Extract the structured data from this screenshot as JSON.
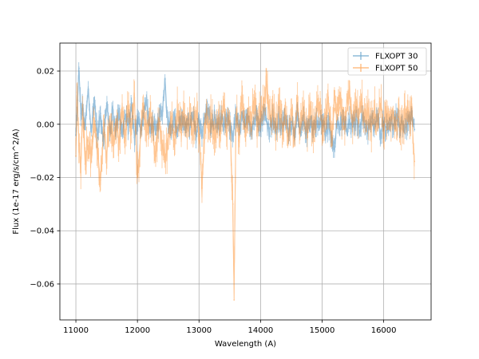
{
  "chart_data": {
    "type": "line",
    "title": "",
    "xlabel": "Wavelength (A)",
    "ylabel": "Flux (1e-17 erg/s/cm^2/A)",
    "xlim": [
      10740,
      16770
    ],
    "ylim": [
      -0.0735,
      0.0305
    ],
    "xticks": [
      11000,
      12000,
      13000,
      14000,
      15000,
      16000
    ],
    "xtick_labels": [
      "11000",
      "12000",
      "13000",
      "14000",
      "15000",
      "16000"
    ],
    "yticks": [
      0.02,
      0.0,
      -0.02,
      -0.04,
      -0.06
    ],
    "ytick_labels": [
      "0.02",
      "0.00",
      "−0.02",
      "−0.04",
      "−0.06"
    ],
    "grid": true,
    "legend_position": "upper right",
    "x_range": [
      11000,
      16500
    ],
    "series": [
      {
        "name": "FLXOPT 30",
        "color": "#1f77b4",
        "alpha": 0.45,
        "points": [
          [
            11000,
            -0.004
          ],
          [
            11030,
            0.009
          ],
          [
            11050,
            0.021
          ],
          [
            11080,
            0.004
          ],
          [
            11110,
            0.006
          ],
          [
            11150,
            -0.002
          ],
          [
            11200,
            0.013
          ],
          [
            11250,
            -0.003
          ],
          [
            11300,
            0.01
          ],
          [
            11350,
            -0.005
          ],
          [
            11400,
            0.004
          ],
          [
            11450,
            -0.006
          ],
          [
            11500,
            0.008
          ],
          [
            11550,
            -0.003
          ],
          [
            11600,
            0.005
          ],
          [
            11650,
            -0.002
          ],
          [
            11700,
            0.006
          ],
          [
            11750,
            -0.004
          ],
          [
            11800,
            0.003
          ],
          [
            11850,
            -0.001
          ],
          [
            11900,
            0.007
          ],
          [
            11950,
            -0.005
          ],
          [
            12000,
            0.002
          ],
          [
            12050,
            -0.002
          ],
          [
            12100,
            0.004
          ],
          [
            12150,
            0.009
          ],
          [
            12200,
            -0.003
          ],
          [
            12250,
            0.001
          ],
          [
            12300,
            -0.004
          ],
          [
            12350,
            0.002
          ],
          [
            12400,
            0.004
          ],
          [
            12450,
            0.017
          ],
          [
            12480,
            0.003
          ],
          [
            12550,
            -0.001
          ],
          [
            12600,
            0.002
          ],
          [
            12650,
            -0.003
          ],
          [
            12700,
            0.003
          ],
          [
            12750,
            -0.002
          ],
          [
            12800,
            0.002
          ],
          [
            12850,
            -0.002
          ],
          [
            12900,
            0.003
          ],
          [
            12950,
            -0.004
          ],
          [
            13000,
            0.002
          ],
          [
            13050,
            -0.003
          ],
          [
            13100,
            0.003
          ],
          [
            13150,
            0.006
          ],
          [
            13200,
            -0.002
          ],
          [
            13250,
            0.003
          ],
          [
            13300,
            -0.001
          ],
          [
            13350,
            0.002
          ],
          [
            13400,
            -0.002
          ],
          [
            13450,
            0.002
          ],
          [
            13500,
            -0.001
          ],
          [
            13550,
            -0.004
          ],
          [
            13600,
            0.003
          ],
          [
            13650,
            -0.002
          ],
          [
            13700,
            0.002
          ],
          [
            13750,
            -0.001
          ],
          [
            13800,
            0.003
          ],
          [
            13850,
            -0.002
          ],
          [
            13900,
            0.002
          ],
          [
            13950,
            0.004
          ],
          [
            14000,
            -0.001
          ],
          [
            14050,
            0.005
          ],
          [
            14100,
            0.001
          ],
          [
            14150,
            -0.002
          ],
          [
            14200,
            0.003
          ],
          [
            14250,
            -0.003
          ],
          [
            14300,
            0.002
          ],
          [
            14350,
            -0.001
          ],
          [
            14400,
            0.002
          ],
          [
            14450,
            -0.002
          ],
          [
            14500,
            0.001
          ],
          [
            14550,
            -0.002
          ],
          [
            14600,
            0.002
          ],
          [
            14650,
            -0.004
          ],
          [
            14700,
            0.001
          ],
          [
            14750,
            -0.003
          ],
          [
            14800,
            0.002
          ],
          [
            14850,
            -0.002
          ],
          [
            14900,
            0.001
          ],
          [
            14950,
            -0.001
          ],
          [
            15000,
            0.002
          ],
          [
            15050,
            -0.003
          ],
          [
            15100,
            0.0
          ],
          [
            15150,
            -0.005
          ],
          [
            15200,
            -0.007
          ],
          [
            15250,
            0.001
          ],
          [
            15300,
            -0.002
          ],
          [
            15350,
            0.002
          ],
          [
            15400,
            -0.003
          ],
          [
            15450,
            0.001
          ],
          [
            15500,
            -0.001
          ],
          [
            15550,
            0.002
          ],
          [
            15600,
            -0.001
          ],
          [
            15650,
            0.002
          ],
          [
            15700,
            0.0
          ],
          [
            15750,
            -0.002
          ],
          [
            15800,
            0.001
          ],
          [
            15850,
            -0.001
          ],
          [
            15900,
            0.002
          ],
          [
            15950,
            -0.003
          ],
          [
            16000,
            0.001
          ],
          [
            16050,
            -0.002
          ],
          [
            16100,
            0.002
          ],
          [
            16150,
            -0.001
          ],
          [
            16200,
            0.002
          ],
          [
            16250,
            -0.001
          ],
          [
            16300,
            0.001
          ],
          [
            16350,
            -0.002
          ],
          [
            16400,
            0.001
          ],
          [
            16450,
            0.002
          ],
          [
            16500,
            -0.002
          ]
        ]
      },
      {
        "name": "FLXOPT 50",
        "color": "#ff7f0e",
        "alpha": 0.45,
        "points": [
          [
            11000,
            -0.012
          ],
          [
            11020,
            0.012
          ],
          [
            11050,
            -0.008
          ],
          [
            11080,
            -0.018
          ],
          [
            11110,
            0.005
          ],
          [
            11150,
            -0.015
          ],
          [
            11200,
            -0.005
          ],
          [
            11250,
            -0.014
          ],
          [
            11300,
            0.0
          ],
          [
            11350,
            -0.01
          ],
          [
            11400,
            -0.021
          ],
          [
            11450,
            -0.002
          ],
          [
            11500,
            -0.012
          ],
          [
            11550,
            0.003
          ],
          [
            11600,
            -0.008
          ],
          [
            11650,
            0.002
          ],
          [
            11700,
            -0.006
          ],
          [
            11750,
            0.004
          ],
          [
            11800,
            -0.004
          ],
          [
            11850,
            0.006
          ],
          [
            11900,
            -0.003
          ],
          [
            11950,
            0.01
          ],
          [
            12000,
            -0.02
          ],
          [
            12050,
            -0.005
          ],
          [
            12100,
            0.008
          ],
          [
            12150,
            -0.004
          ],
          [
            12200,
            0.006
          ],
          [
            12250,
            -0.006
          ],
          [
            12300,
            -0.012
          ],
          [
            12350,
            0.002
          ],
          [
            12400,
            -0.008
          ],
          [
            12450,
            -0.013
          ],
          [
            12500,
            -0.006
          ],
          [
            12550,
            0.003
          ],
          [
            12600,
            -0.004
          ],
          [
            12650,
            0.005
          ],
          [
            12700,
            -0.003
          ],
          [
            12750,
            0.004
          ],
          [
            12800,
            -0.002
          ],
          [
            12850,
            0.003
          ],
          [
            12900,
            -0.004
          ],
          [
            12950,
            0.005
          ],
          [
            13000,
            -0.002
          ],
          [
            13050,
            -0.024
          ],
          [
            13100,
            0.004
          ],
          [
            13150,
            -0.002
          ],
          [
            13200,
            0.004
          ],
          [
            13250,
            -0.003
          ],
          [
            13300,
            0.002
          ],
          [
            13350,
            -0.002
          ],
          [
            13400,
            0.006
          ],
          [
            13450,
            -0.001
          ],
          [
            13500,
            0.003
          ],
          [
            13550,
            -0.03
          ],
          [
            13570,
            -0.066
          ],
          [
            13600,
            0.004
          ],
          [
            13650,
            -0.004
          ],
          [
            13700,
            0.008
          ],
          [
            13750,
            -0.002
          ],
          [
            13800,
            0.006
          ],
          [
            13850,
            0.002
          ],
          [
            13900,
            0.01
          ],
          [
            13950,
            -0.002
          ],
          [
            14000,
            0.005
          ],
          [
            14050,
            0.008
          ],
          [
            14100,
            0.016
          ],
          [
            14150,
            0.002
          ],
          [
            14200,
            0.006
          ],
          [
            14250,
            -0.002
          ],
          [
            14300,
            0.008
          ],
          [
            14350,
            -0.001
          ],
          [
            14400,
            0.004
          ],
          [
            14450,
            -0.005
          ],
          [
            14500,
            0.003
          ],
          [
            14550,
            -0.004
          ],
          [
            14600,
            0.006
          ],
          [
            14650,
            -0.001
          ],
          [
            14700,
            0.004
          ],
          [
            14750,
            -0.003
          ],
          [
            14800,
            0.005
          ],
          [
            14850,
            -0.002
          ],
          [
            14900,
            0.003
          ],
          [
            14950,
            0.008
          ],
          [
            15000,
            -0.001
          ],
          [
            15050,
            0.004
          ],
          [
            15100,
            0.009
          ],
          [
            15150,
            -0.004
          ],
          [
            15200,
            0.006
          ],
          [
            15250,
            0.002
          ],
          [
            15300,
            0.008
          ],
          [
            15350,
            -0.002
          ],
          [
            15400,
            0.005
          ],
          [
            15450,
            0.011
          ],
          [
            15500,
            0.0
          ],
          [
            15550,
            0.006
          ],
          [
            15600,
            0.003
          ],
          [
            15650,
            0.008
          ],
          [
            15700,
            0.001
          ],
          [
            15750,
            0.004
          ],
          [
            15800,
            -0.002
          ],
          [
            15850,
            0.005
          ],
          [
            15900,
            0.001
          ],
          [
            15950,
            0.007
          ],
          [
            16000,
            -0.001
          ],
          [
            16050,
            0.003
          ],
          [
            16100,
            -0.002
          ],
          [
            16150,
            0.004
          ],
          [
            16200,
            0.001
          ],
          [
            16250,
            0.003
          ],
          [
            16300,
            -0.002
          ],
          [
            16350,
            0.004
          ],
          [
            16400,
            0.001
          ],
          [
            16450,
            0.005
          ],
          [
            16500,
            -0.014
          ]
        ]
      }
    ]
  }
}
